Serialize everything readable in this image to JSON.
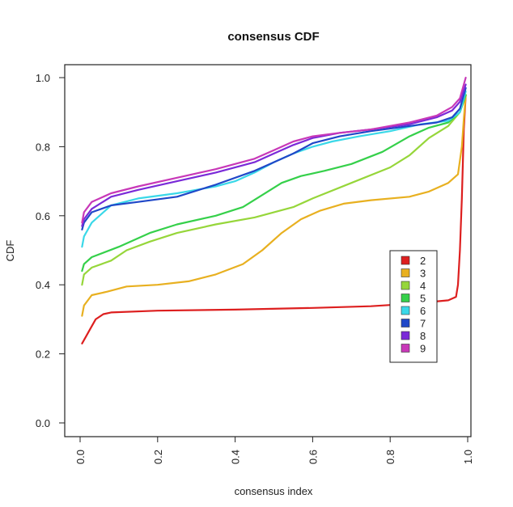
{
  "chart_data": {
    "type": "line",
    "title": "consensus CDF",
    "xlabel": "consensus index",
    "ylabel": "CDF",
    "xlim": [
      0,
      1
    ],
    "ylim": [
      0,
      1
    ],
    "x_ticks": [
      "0.0",
      "0.2",
      "0.4",
      "0.6",
      "0.8",
      "1.0"
    ],
    "y_ticks": [
      "0.0",
      "0.2",
      "0.4",
      "0.6",
      "0.8",
      "1.0"
    ],
    "grid": false,
    "legend_position": "right",
    "series": [
      {
        "name": "2",
        "color": "#dd1f1f",
        "points": [
          [
            0.005,
            0.23
          ],
          [
            0.015,
            0.25
          ],
          [
            0.025,
            0.27
          ],
          [
            0.04,
            0.3
          ],
          [
            0.06,
            0.315
          ],
          [
            0.08,
            0.32
          ],
          [
            0.2,
            0.325
          ],
          [
            0.4,
            0.328
          ],
          [
            0.6,
            0.333
          ],
          [
            0.75,
            0.338
          ],
          [
            0.85,
            0.345
          ],
          [
            0.9,
            0.35
          ],
          [
            0.95,
            0.355
          ],
          [
            0.97,
            0.365
          ],
          [
            0.975,
            0.4
          ],
          [
            0.98,
            0.5
          ],
          [
            0.985,
            0.65
          ],
          [
            0.99,
            0.85
          ],
          [
            0.995,
            0.95
          ]
        ]
      },
      {
        "name": "3",
        "color": "#e8b020",
        "points": [
          [
            0.005,
            0.31
          ],
          [
            0.01,
            0.34
          ],
          [
            0.03,
            0.37
          ],
          [
            0.07,
            0.38
          ],
          [
            0.12,
            0.395
          ],
          [
            0.2,
            0.4
          ],
          [
            0.28,
            0.41
          ],
          [
            0.35,
            0.43
          ],
          [
            0.42,
            0.46
          ],
          [
            0.47,
            0.5
          ],
          [
            0.52,
            0.55
          ],
          [
            0.57,
            0.59
          ],
          [
            0.62,
            0.615
          ],
          [
            0.68,
            0.635
          ],
          [
            0.75,
            0.645
          ],
          [
            0.85,
            0.655
          ],
          [
            0.9,
            0.67
          ],
          [
            0.95,
            0.695
          ],
          [
            0.975,
            0.72
          ],
          [
            0.985,
            0.8
          ],
          [
            0.99,
            0.88
          ],
          [
            0.995,
            0.95
          ]
        ]
      },
      {
        "name": "4",
        "color": "#96d63a",
        "points": [
          [
            0.005,
            0.4
          ],
          [
            0.01,
            0.43
          ],
          [
            0.03,
            0.45
          ],
          [
            0.08,
            0.47
          ],
          [
            0.12,
            0.5
          ],
          [
            0.18,
            0.525
          ],
          [
            0.25,
            0.55
          ],
          [
            0.35,
            0.575
          ],
          [
            0.45,
            0.595
          ],
          [
            0.55,
            0.625
          ],
          [
            0.6,
            0.65
          ],
          [
            0.7,
            0.695
          ],
          [
            0.8,
            0.74
          ],
          [
            0.85,
            0.775
          ],
          [
            0.9,
            0.825
          ],
          [
            0.95,
            0.86
          ],
          [
            0.98,
            0.9
          ],
          [
            0.995,
            0.95
          ]
        ]
      },
      {
        "name": "5",
        "color": "#35d04a",
        "points": [
          [
            0.005,
            0.44
          ],
          [
            0.01,
            0.46
          ],
          [
            0.03,
            0.48
          ],
          [
            0.1,
            0.51
          ],
          [
            0.18,
            0.55
          ],
          [
            0.25,
            0.575
          ],
          [
            0.35,
            0.6
          ],
          [
            0.42,
            0.625
          ],
          [
            0.47,
            0.66
          ],
          [
            0.52,
            0.695
          ],
          [
            0.57,
            0.715
          ],
          [
            0.63,
            0.73
          ],
          [
            0.7,
            0.75
          ],
          [
            0.78,
            0.785
          ],
          [
            0.85,
            0.83
          ],
          [
            0.9,
            0.855
          ],
          [
            0.95,
            0.87
          ],
          [
            0.98,
            0.9
          ],
          [
            0.995,
            0.95
          ]
        ]
      },
      {
        "name": "6",
        "color": "#3ad8e8",
        "points": [
          [
            0.005,
            0.51
          ],
          [
            0.01,
            0.54
          ],
          [
            0.03,
            0.58
          ],
          [
            0.08,
            0.63
          ],
          [
            0.15,
            0.65
          ],
          [
            0.25,
            0.665
          ],
          [
            0.35,
            0.685
          ],
          [
            0.4,
            0.7
          ],
          [
            0.45,
            0.725
          ],
          [
            0.5,
            0.755
          ],
          [
            0.55,
            0.78
          ],
          [
            0.6,
            0.8
          ],
          [
            0.65,
            0.815
          ],
          [
            0.72,
            0.83
          ],
          [
            0.8,
            0.845
          ],
          [
            0.88,
            0.865
          ],
          [
            0.95,
            0.875
          ],
          [
            0.98,
            0.9
          ],
          [
            0.995,
            0.96
          ]
        ]
      },
      {
        "name": "7",
        "color": "#2048c8",
        "points": [
          [
            0.005,
            0.56
          ],
          [
            0.01,
            0.58
          ],
          [
            0.03,
            0.61
          ],
          [
            0.08,
            0.63
          ],
          [
            0.15,
            0.64
          ],
          [
            0.25,
            0.655
          ],
          [
            0.35,
            0.69
          ],
          [
            0.45,
            0.73
          ],
          [
            0.5,
            0.755
          ],
          [
            0.55,
            0.78
          ],
          [
            0.6,
            0.81
          ],
          [
            0.67,
            0.83
          ],
          [
            0.75,
            0.845
          ],
          [
            0.85,
            0.86
          ],
          [
            0.92,
            0.87
          ],
          [
            0.96,
            0.885
          ],
          [
            0.98,
            0.91
          ],
          [
            0.995,
            0.97
          ]
        ]
      },
      {
        "name": "8",
        "color": "#7a2ad8",
        "points": [
          [
            0.005,
            0.57
          ],
          [
            0.01,
            0.59
          ],
          [
            0.03,
            0.62
          ],
          [
            0.08,
            0.655
          ],
          [
            0.15,
            0.675
          ],
          [
            0.25,
            0.7
          ],
          [
            0.35,
            0.725
          ],
          [
            0.45,
            0.755
          ],
          [
            0.5,
            0.78
          ],
          [
            0.55,
            0.805
          ],
          [
            0.6,
            0.825
          ],
          [
            0.67,
            0.84
          ],
          [
            0.75,
            0.85
          ],
          [
            0.85,
            0.865
          ],
          [
            0.92,
            0.885
          ],
          [
            0.96,
            0.905
          ],
          [
            0.98,
            0.93
          ],
          [
            0.995,
            0.98
          ]
        ]
      },
      {
        "name": "9",
        "color": "#c838b8",
        "points": [
          [
            0.005,
            0.58
          ],
          [
            0.01,
            0.61
          ],
          [
            0.03,
            0.64
          ],
          [
            0.08,
            0.665
          ],
          [
            0.15,
            0.685
          ],
          [
            0.25,
            0.71
          ],
          [
            0.35,
            0.735
          ],
          [
            0.45,
            0.765
          ],
          [
            0.5,
            0.79
          ],
          [
            0.55,
            0.815
          ],
          [
            0.6,
            0.83
          ],
          [
            0.67,
            0.84
          ],
          [
            0.75,
            0.85
          ],
          [
            0.85,
            0.87
          ],
          [
            0.92,
            0.89
          ],
          [
            0.96,
            0.915
          ],
          [
            0.98,
            0.94
          ],
          [
            0.995,
            1.0
          ]
        ]
      }
    ]
  }
}
